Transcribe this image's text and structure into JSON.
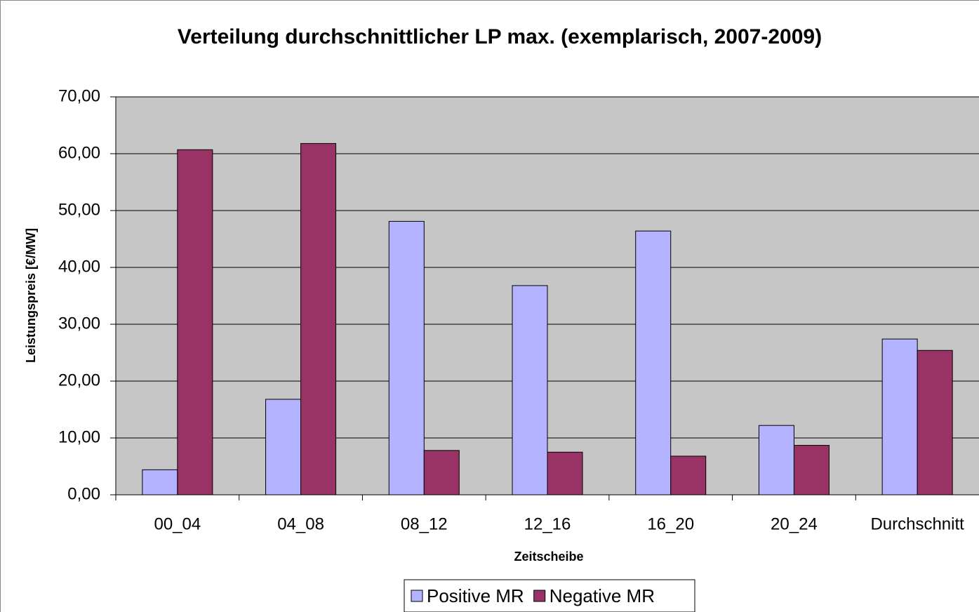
{
  "chart_data": {
    "type": "bar",
    "title": "Verteilung durchschnittlicher LP max. (exemplarisch, 2007-2009)",
    "x_label": "Zeitscheibe",
    "y_label": "Leistungspreis [€/MW]",
    "categories": [
      "00_04",
      "04_08",
      "08_12",
      "12_16",
      "16_20",
      "20_24",
      "Durchschnitt"
    ],
    "series": [
      {
        "name": "Positive MR",
        "color": "#b3b3ff",
        "values": [
          4.4,
          16.8,
          48.1,
          36.8,
          46.4,
          12.2,
          27.4
        ]
      },
      {
        "name": "Negative MR",
        "color": "#993366",
        "values": [
          60.7,
          61.8,
          7.8,
          7.5,
          6.8,
          8.7,
          25.4
        ]
      }
    ],
    "ylim": [
      0,
      70
    ],
    "yticks": [
      {
        "value": 0,
        "label": "0,00"
      },
      {
        "value": 10,
        "label": "10,00"
      },
      {
        "value": 20,
        "label": "20,00"
      },
      {
        "value": 30,
        "label": "30,00"
      },
      {
        "value": 40,
        "label": "40,00"
      },
      {
        "value": 50,
        "label": "50,00"
      },
      {
        "value": 60,
        "label": "60,00"
      },
      {
        "value": 70,
        "label": "70,00"
      }
    ],
    "grid": true,
    "legend": "bottom"
  }
}
